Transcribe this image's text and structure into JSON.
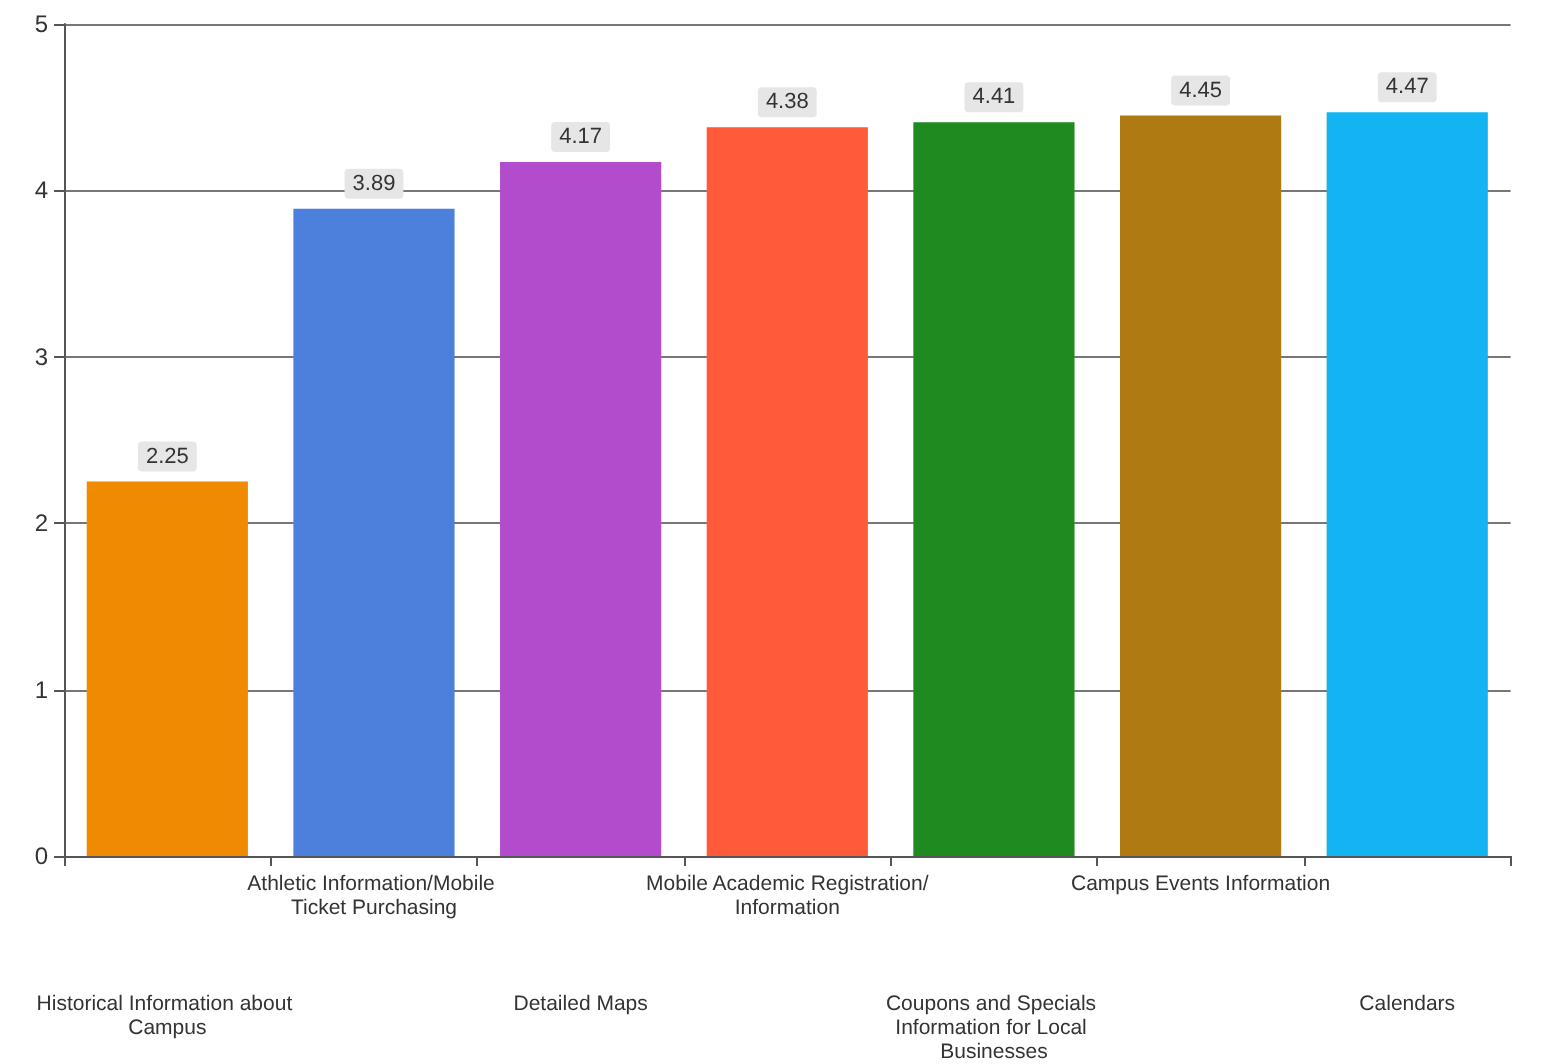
{
  "chart_data": {
    "type": "bar",
    "categories": [
      "Historical Information about Campus",
      "Athletic Information/Mobile Ticket Purchasing",
      "Detailed Maps",
      "Mobile Academic Registration/Information",
      "Coupons and Specials Information for Local Businesses",
      "Campus Events Information",
      "Calendars"
    ],
    "values": [
      2.25,
      3.89,
      4.17,
      4.38,
      4.41,
      4.45,
      4.47
    ],
    "colors": [
      "#f08a00",
      "#4d7fdc",
      "#b24bcc",
      "#ff5a3a",
      "#1f8a1f",
      "#b07a12",
      "#12b4f2"
    ],
    "ylim": [
      0,
      5
    ],
    "yticks": [
      0,
      1,
      2,
      3,
      4,
      5
    ],
    "grid": "y",
    "data_labels": true
  }
}
